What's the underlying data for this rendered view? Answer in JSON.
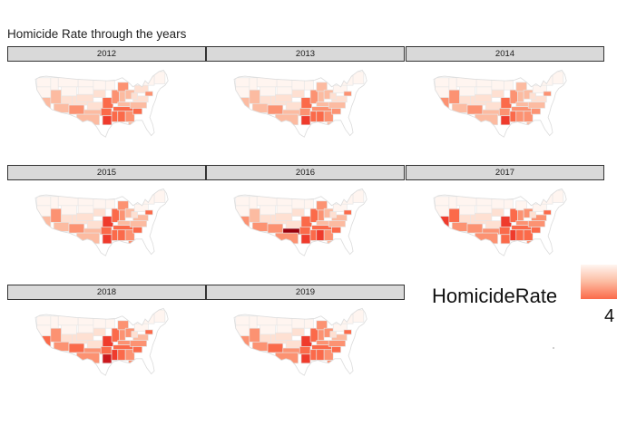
{
  "title": "Homicide Rate through the years",
  "legend": {
    "title": "HomicideRate",
    "visible_tick": "4",
    "colors": [
      "#fff5f0",
      "#fee0d2",
      "#fcbba1",
      "#fc9272",
      "#fb6a4a",
      "#ef3b2c",
      "#cb181d",
      "#99000d"
    ]
  },
  "map_style": {
    "state_border_color": "#e6e6e6"
  },
  "panels": [
    {
      "year": "2012"
    },
    {
      "year": "2013"
    },
    {
      "year": "2014"
    },
    {
      "year": "2015"
    },
    {
      "year": "2016"
    },
    {
      "year": "2017"
    },
    {
      "year": "2018"
    },
    {
      "year": "2019"
    }
  ]
}
